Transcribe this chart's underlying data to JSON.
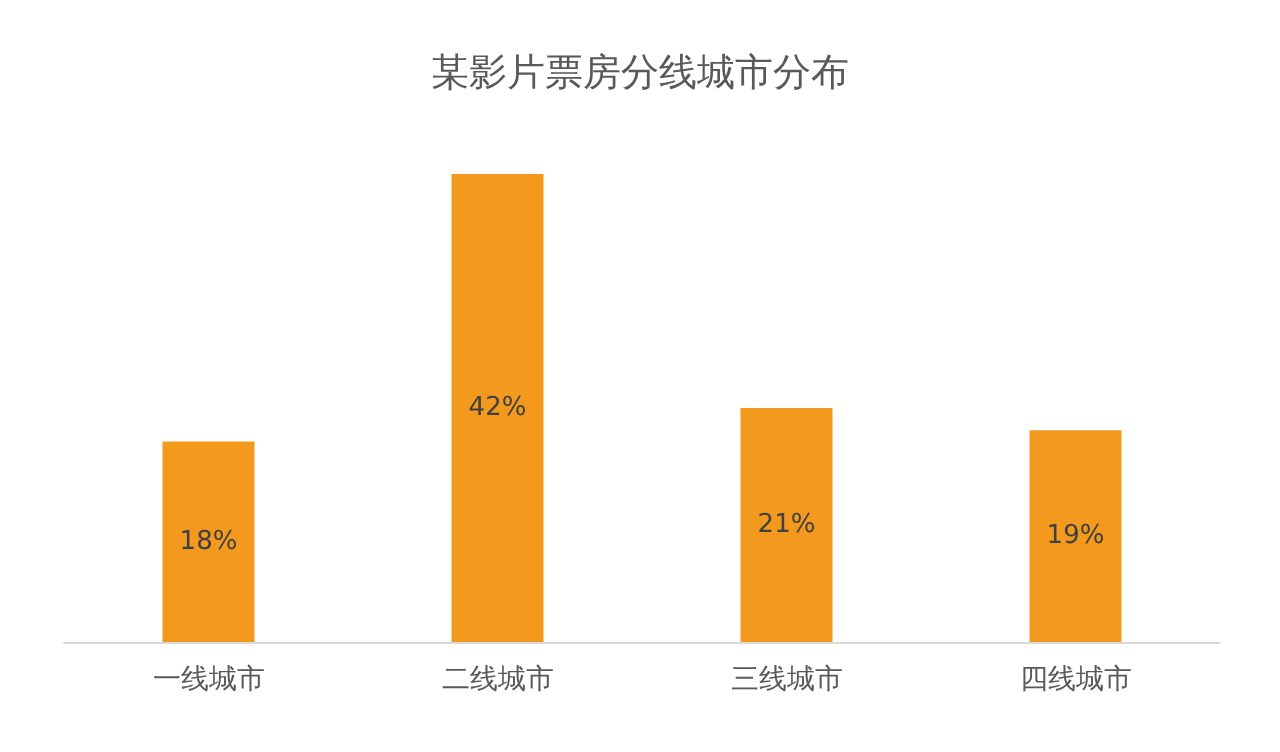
{
  "chart_data": {
    "type": "bar",
    "title": "某影片票房分线城市分布",
    "categories": [
      "一线城市",
      "二线城市",
      "三线城市",
      "四线城市"
    ],
    "values": [
      18,
      42,
      21,
      19
    ],
    "value_labels": [
      "18%",
      "42%",
      "21%",
      "19%"
    ],
    "color": "#f39a1e"
  }
}
